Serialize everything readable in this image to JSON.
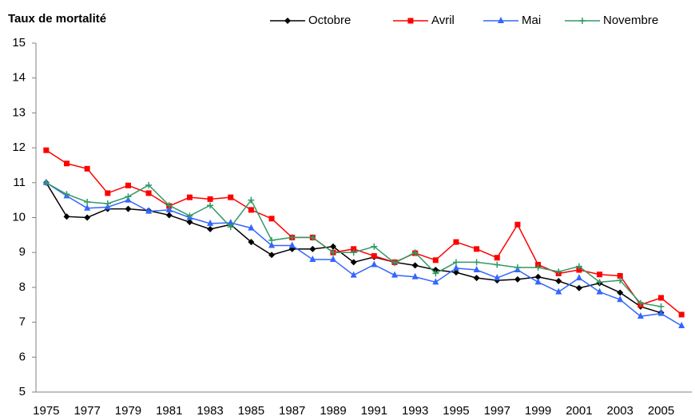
{
  "chart_data": {
    "type": "line",
    "title": "Taux de mortalité",
    "x": [
      1975,
      1976,
      1977,
      1978,
      1979,
      1980,
      1981,
      1982,
      1983,
      1984,
      1985,
      1986,
      1987,
      1988,
      1989,
      1990,
      1991,
      1992,
      1993,
      1994,
      1995,
      1996,
      1997,
      1998,
      1999,
      2000,
      2001,
      2002,
      2003,
      2004,
      2005,
      2006
    ],
    "xlim": [
      1974.5,
      2006.5
    ],
    "xticks": [
      1975,
      1977,
      1979,
      1981,
      1983,
      1985,
      1987,
      1989,
      1991,
      1993,
      1995,
      1997,
      1999,
      2001,
      2003,
      2005
    ],
    "ylim": [
      5,
      15
    ],
    "yticks": [
      5,
      6,
      7,
      8,
      9,
      10,
      11,
      12,
      13,
      14,
      15
    ],
    "grid": false,
    "legend": "top",
    "series": [
      {
        "name": "Octobre",
        "color": "#000000",
        "marker": "diamond",
        "values": [
          11.0,
          10.03,
          10.0,
          10.25,
          10.25,
          10.2,
          10.07,
          9.87,
          9.67,
          9.8,
          9.3,
          8.93,
          9.1,
          9.1,
          9.17,
          8.72,
          8.87,
          8.72,
          8.63,
          8.5,
          8.43,
          8.27,
          8.2,
          8.23,
          8.3,
          8.18,
          7.98,
          8.12,
          7.85,
          7.45,
          7.27,
          null
        ]
      },
      {
        "name": "Avril",
        "color": "#ff0000",
        "marker": "square",
        "values": [
          11.93,
          11.55,
          11.4,
          10.7,
          10.92,
          10.7,
          10.33,
          10.58,
          10.53,
          10.58,
          10.22,
          9.97,
          9.43,
          9.43,
          9.0,
          9.1,
          8.9,
          8.72,
          8.98,
          8.78,
          9.3,
          9.1,
          8.85,
          9.8,
          8.65,
          8.4,
          8.5,
          8.37,
          8.33,
          7.5,
          7.7,
          7.22
        ]
      },
      {
        "name": "Mai",
        "color": "#3366ff",
        "marker": "triangle",
        "values": [
          11.0,
          10.62,
          10.27,
          10.3,
          10.5,
          10.18,
          10.22,
          10.0,
          9.83,
          9.85,
          9.7,
          9.2,
          9.2,
          8.8,
          8.8,
          8.35,
          8.65,
          8.35,
          8.3,
          8.15,
          8.55,
          8.5,
          8.27,
          8.5,
          8.15,
          7.87,
          8.27,
          7.87,
          7.65,
          7.17,
          7.25,
          6.9
        ]
      },
      {
        "name": "Novembre",
        "color": "#339966",
        "marker": "plus",
        "values": [
          11.0,
          10.67,
          10.45,
          10.4,
          10.6,
          10.93,
          10.35,
          10.05,
          10.35,
          9.73,
          10.5,
          9.35,
          9.43,
          9.43,
          9.0,
          9.0,
          9.17,
          8.7,
          9.0,
          8.4,
          8.72,
          8.72,
          8.65,
          8.57,
          8.57,
          8.45,
          8.6,
          8.15,
          8.2,
          7.55,
          7.45,
          null
        ]
      }
    ]
  }
}
